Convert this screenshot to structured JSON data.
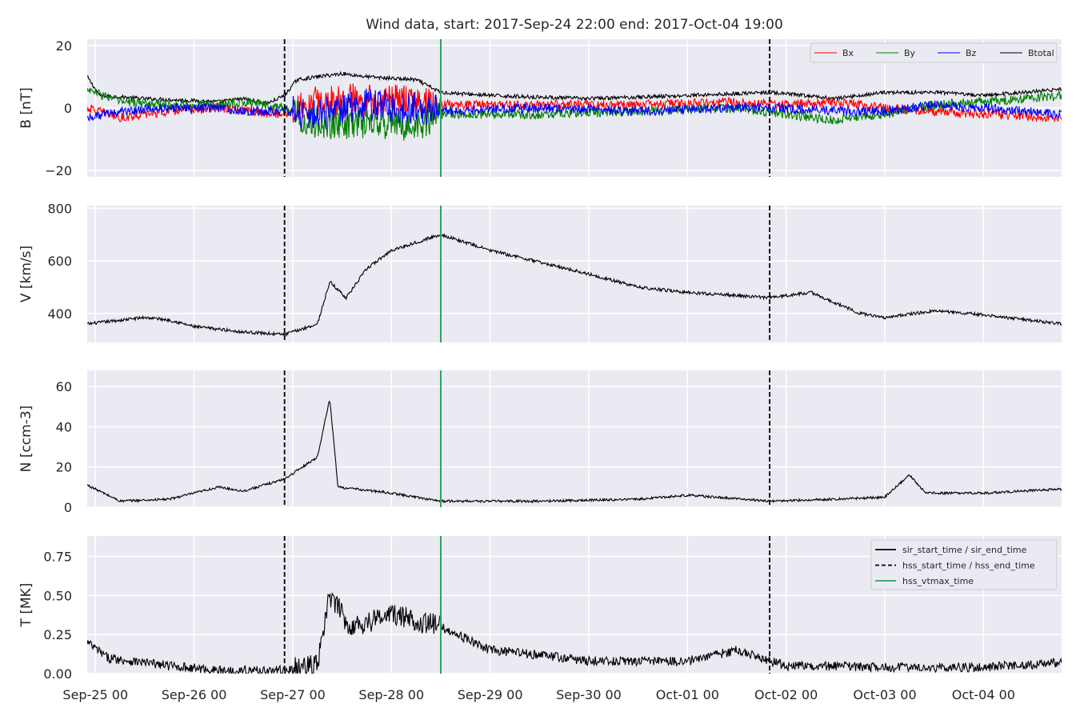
{
  "chart_data": {
    "type": "line",
    "title": "Wind data, start: 2017-Sep-24 22:00  end: 2017-Oct-04 19:00",
    "x_ticks": [
      "Sep-25 00",
      "Sep-26 00",
      "Sep-27 00",
      "Sep-28 00",
      "Sep-29 00",
      "Sep-30 00",
      "Oct-01 00",
      "Oct-02 00",
      "Oct-03 00",
      "Oct-04 00"
    ],
    "xlim": [
      "2017-09-24 22:00",
      "2017-10-04 19:00"
    ],
    "grid": true,
    "markers": [
      {
        "name": "hss_start_time",
        "time": "2017-09-26 22:00",
        "style": "dashed",
        "color": "#000000"
      },
      {
        "name": "hss_vtmax_time",
        "time": "2017-09-28 12:00",
        "style": "solid",
        "color": "#2ca25f"
      },
      {
        "name": "hss_end_time",
        "time": "2017-10-01 20:00",
        "style": "dashed",
        "color": "#000000"
      }
    ],
    "legend_markers": {
      "position": "upper-right of T panel",
      "entries": [
        "sir_start_time / sir_end_time",
        "hss_start_time / hss_end_time",
        "hss_vtmax_time"
      ]
    },
    "panels": [
      {
        "id": "B",
        "ylabel": "B [nT]",
        "ylim": [
          -22,
          22
        ],
        "y_ticks": [
          -20,
          0,
          20
        ],
        "legend": {
          "position": "top-right",
          "entries": [
            "Bx",
            "By",
            "Bz",
            "Btotal"
          ]
        },
        "series": [
          {
            "name": "Btotal",
            "color": "#000000",
            "noise": 0.6,
            "points": [
              [
                "2017-09-24 22:00",
                10
              ],
              [
                "2017-09-25 01:00",
                4
              ],
              [
                "2017-09-25 12:00",
                3
              ],
              [
                "2017-09-26 06:00",
                2
              ],
              [
                "2017-09-26 12:00",
                3
              ],
              [
                "2017-09-26 18:00",
                1.5
              ],
              [
                "2017-09-26 22:00",
                4
              ],
              [
                "2017-09-27 01:00",
                9
              ],
              [
                "2017-09-27 06:00",
                10
              ],
              [
                "2017-09-27 12:00",
                11
              ],
              [
                "2017-09-27 18:00",
                10
              ],
              [
                "2017-09-28 06:00",
                9
              ],
              [
                "2017-09-28 12:00",
                5
              ],
              [
                "2017-09-29 00:00",
                4
              ],
              [
                "2017-09-30 00:00",
                3
              ],
              [
                "2017-10-01 00:00",
                4
              ],
              [
                "2017-10-01 20:00",
                5
              ],
              [
                "2017-10-02 12:00",
                3
              ],
              [
                "2017-10-03 00:00",
                5
              ],
              [
                "2017-10-03 12:00",
                5
              ],
              [
                "2017-10-04 00:00",
                4
              ],
              [
                "2017-10-04 19:00",
                6
              ]
            ]
          },
          {
            "name": "Bx",
            "color": "#ff0000",
            "noise": 1.5,
            "points": [
              [
                "2017-09-24 22:00",
                0
              ],
              [
                "2017-09-25 06:00",
                -3
              ],
              [
                "2017-09-25 18:00",
                -1
              ],
              [
                "2017-09-26 06:00",
                0
              ],
              [
                "2017-09-26 12:00",
                -1
              ],
              [
                "2017-09-26 22:00",
                -2
              ],
              [
                "2017-09-27 06:00",
                2
              ],
              [
                "2017-09-27 18:00",
                3
              ],
              [
                "2017-09-28 06:00",
                2
              ],
              [
                "2017-09-28 12:00",
                1
              ],
              [
                "2017-09-29 12:00",
                1
              ],
              [
                "2017-09-30 12:00",
                1
              ],
              [
                "2017-10-01 12:00",
                2
              ],
              [
                "2017-10-02 00:00",
                1
              ],
              [
                "2017-10-02 12:00",
                2
              ],
              [
                "2017-10-03 00:00",
                0
              ],
              [
                "2017-10-03 12:00",
                -1
              ],
              [
                "2017-10-04 00:00",
                -2
              ],
              [
                "2017-10-04 19:00",
                -3
              ]
            ]
          },
          {
            "name": "By",
            "color": "#008000",
            "noise": 1.5,
            "points": [
              [
                "2017-09-24 22:00",
                6
              ],
              [
                "2017-09-25 06:00",
                2
              ],
              [
                "2017-09-25 18:00",
                1
              ],
              [
                "2017-09-26 06:00",
                1
              ],
              [
                "2017-09-26 12:00",
                2
              ],
              [
                "2017-09-26 22:00",
                0
              ],
              [
                "2017-09-27 06:00",
                -5
              ],
              [
                "2017-09-27 18:00",
                -5
              ],
              [
                "2017-09-28 06:00",
                -6
              ],
              [
                "2017-09-28 12:00",
                -2
              ],
              [
                "2017-09-29 12:00",
                -2
              ],
              [
                "2017-09-30 12:00",
                -1
              ],
              [
                "2017-10-01 12:00",
                0
              ],
              [
                "2017-10-02 00:00",
                -2
              ],
              [
                "2017-10-02 12:00",
                -4
              ],
              [
                "2017-10-03 00:00",
                -2
              ],
              [
                "2017-10-03 12:00",
                1
              ],
              [
                "2017-10-04 00:00",
                2
              ],
              [
                "2017-10-04 19:00",
                4
              ]
            ]
          },
          {
            "name": "Bz",
            "color": "#0000ff",
            "noise": 1.5,
            "points": [
              [
                "2017-09-24 22:00",
                -3
              ],
              [
                "2017-09-25 06:00",
                -1
              ],
              [
                "2017-09-25 18:00",
                0
              ],
              [
                "2017-09-26 06:00",
                0
              ],
              [
                "2017-09-26 12:00",
                -1
              ],
              [
                "2017-09-26 22:00",
                -1
              ],
              [
                "2017-09-27 06:00",
                -2
              ],
              [
                "2017-09-27 18:00",
                1
              ],
              [
                "2017-09-28 06:00",
                0
              ],
              [
                "2017-09-28 12:00",
                -1
              ],
              [
                "2017-09-29 12:00",
                0
              ],
              [
                "2017-09-30 12:00",
                -1
              ],
              [
                "2017-10-01 12:00",
                0
              ],
              [
                "2017-10-02 00:00",
                0
              ],
              [
                "2017-10-02 12:00",
                -1
              ],
              [
                "2017-10-03 00:00",
                -1
              ],
              [
                "2017-10-03 12:00",
                1
              ],
              [
                "2017-10-04 00:00",
                0
              ],
              [
                "2017-10-04 19:00",
                -2
              ]
            ]
          }
        ]
      },
      {
        "id": "V",
        "ylabel": "V [km/s]",
        "ylim": [
          290,
          810
        ],
        "y_ticks": [
          400,
          600,
          800
        ],
        "series": [
          {
            "name": "V",
            "color": "#000000",
            "noise": 6,
            "points": [
              [
                "2017-09-24 22:00",
                360
              ],
              [
                "2017-09-25 12:00",
                385
              ],
              [
                "2017-09-25 18:00",
                375
              ],
              [
                "2017-09-26 00:00",
                350
              ],
              [
                "2017-09-26 12:00",
                330
              ],
              [
                "2017-09-26 22:00",
                320
              ],
              [
                "2017-09-27 06:00",
                360
              ],
              [
                "2017-09-27 09:00",
                520
              ],
              [
                "2017-09-27 13:00",
                460
              ],
              [
                "2017-09-27 18:00",
                570
              ],
              [
                "2017-09-28 00:00",
                640
              ],
              [
                "2017-09-28 12:00",
                700
              ],
              [
                "2017-09-29 00:00",
                640
              ],
              [
                "2017-09-30 00:00",
                550
              ],
              [
                "2017-09-30 12:00",
                500
              ],
              [
                "2017-10-01 00:00",
                480
              ],
              [
                "2017-10-01 20:00",
                460
              ],
              [
                "2017-10-02 06:00",
                480
              ],
              [
                "2017-10-02 18:00",
                400
              ],
              [
                "2017-10-03 00:00",
                385
              ],
              [
                "2017-10-03 12:00",
                410
              ],
              [
                "2017-10-04 00:00",
                395
              ],
              [
                "2017-10-04 19:00",
                360
              ]
            ]
          }
        ]
      },
      {
        "id": "N",
        "ylabel": "N [ccm-3]",
        "ylim": [
          0,
          68
        ],
        "y_ticks": [
          0,
          20,
          40,
          60
        ],
        "series": [
          {
            "name": "N",
            "color": "#000000",
            "noise": 0.6,
            "points": [
              [
                "2017-09-24 22:00",
                11
              ],
              [
                "2017-09-25 06:00",
                3
              ],
              [
                "2017-09-25 18:00",
                4
              ],
              [
                "2017-09-26 06:00",
                10
              ],
              [
                "2017-09-26 12:00",
                8
              ],
              [
                "2017-09-26 22:00",
                14
              ],
              [
                "2017-09-27 06:00",
                25
              ],
              [
                "2017-09-27 09:00",
                54
              ],
              [
                "2017-09-27 11:00",
                10
              ],
              [
                "2017-09-28 00:00",
                7
              ],
              [
                "2017-09-28 12:00",
                3
              ],
              [
                "2017-09-29 12:00",
                3
              ],
              [
                "2017-09-30 12:00",
                4
              ],
              [
                "2017-10-01 00:00",
                6
              ],
              [
                "2017-10-01 20:00",
                3
              ],
              [
                "2017-10-02 12:00",
                4
              ],
              [
                "2017-10-03 00:00",
                5
              ],
              [
                "2017-10-03 06:00",
                16
              ],
              [
                "2017-10-03 10:00",
                7
              ],
              [
                "2017-10-04 00:00",
                7
              ],
              [
                "2017-10-04 19:00",
                9
              ]
            ]
          }
        ]
      },
      {
        "id": "T",
        "ylabel": "T [MK]",
        "ylim": [
          0,
          0.88
        ],
        "y_ticks": [
          0.0,
          0.25,
          0.5,
          0.75
        ],
        "series": [
          {
            "name": "T",
            "color": "#000000",
            "noise": 0.03,
            "points": [
              [
                "2017-09-24 22:00",
                0.2
              ],
              [
                "2017-09-25 03:00",
                0.1
              ],
              [
                "2017-09-25 18:00",
                0.05
              ],
              [
                "2017-09-26 06:00",
                0.02
              ],
              [
                "2017-09-26 22:00",
                0.02
              ],
              [
                "2017-09-27 06:00",
                0.05
              ],
              [
                "2017-09-27 09:00",
                0.5
              ],
              [
                "2017-09-27 14:00",
                0.3
              ],
              [
                "2017-09-28 00:00",
                0.38
              ],
              [
                "2017-09-28 12:00",
                0.3
              ],
              [
                "2017-09-29 00:00",
                0.15
              ],
              [
                "2017-09-29 12:00",
                0.12
              ],
              [
                "2017-09-30 00:00",
                0.08
              ],
              [
                "2017-10-01 00:00",
                0.08
              ],
              [
                "2017-10-01 12:00",
                0.15
              ],
              [
                "2017-10-02 00:00",
                0.05
              ],
              [
                "2017-10-03 00:00",
                0.04
              ],
              [
                "2017-10-04 00:00",
                0.04
              ],
              [
                "2017-10-04 19:00",
                0.07
              ]
            ]
          }
        ]
      }
    ]
  }
}
